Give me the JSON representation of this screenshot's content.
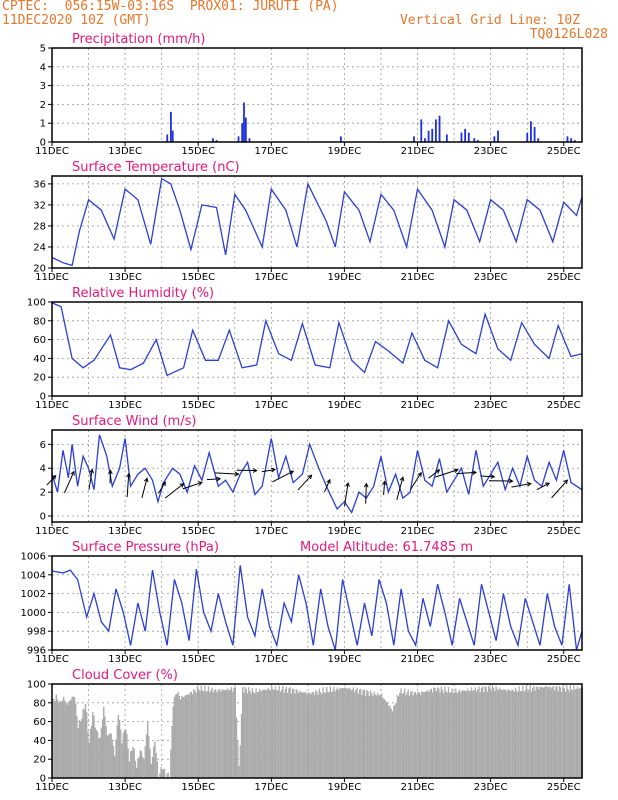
{
  "header": {
    "line1_left": "CPTEC:  056:15W-03:16S  PROX01: JURUTI (PA)",
    "line2_left": "11DEC2020 10Z (GMT)",
    "line2_right": "Vertical Grid Line: 10Z",
    "line3_right": "TQ0126L028"
  },
  "x_tick_labels": [
    "11DEC",
    "13DEC",
    "15DEC",
    "17DEC",
    "19DEC",
    "21DEC",
    "23DEC",
    "25DEC"
  ],
  "panel_title_extra": "Model Altitude: 61.7485 m",
  "colors": {
    "line": "#2a3fd6",
    "bars": "#1d2fe0",
    "cloud": "#aaaaaa",
    "title": "#e8177a",
    "header": "#e8762b"
  },
  "chart_data": [
    {
      "type": "bar",
      "title": "Precipitation (mm/h)",
      "ylim": [
        0,
        5
      ],
      "yticks": [
        "0",
        "1",
        "2",
        "3",
        "4",
        "5"
      ],
      "x_unit": "days since 11DEC 10Z",
      "x": [
        3.15,
        3.25,
        3.3,
        4.4,
        4.5,
        5.1,
        5.2,
        5.25,
        5.3,
        5.4,
        7.9,
        9.9,
        10.1,
        10.2,
        10.3,
        10.4,
        10.5,
        10.6,
        10.8,
        11.2,
        11.3,
        11.4,
        11.55,
        11.65,
        12.1,
        12.2,
        13.0,
        13.1,
        13.2,
        13.3,
        14.1,
        14.2,
        14.3
      ],
      "values": [
        0.4,
        1.6,
        0.6,
        0.2,
        0.1,
        0.3,
        1.0,
        2.1,
        1.3,
        0.2,
        0.3,
        0.3,
        1.2,
        0.2,
        0.6,
        0.7,
        1.2,
        1.4,
        0.4,
        0.5,
        0.7,
        0.5,
        0.2,
        0.1,
        0.3,
        0.6,
        0.5,
        1.1,
        0.8,
        0.2,
        0.3,
        0.2,
        0.1
      ]
    },
    {
      "type": "line",
      "title": "Surface Temperature (nC)",
      "ylim": [
        20,
        37.5
      ],
      "yticks": [
        "20",
        "24",
        "28",
        "32",
        "36"
      ],
      "x": [
        0,
        0.3,
        0.55,
        0.75,
        1.0,
        1.35,
        1.7,
        2.0,
        2.35,
        2.7,
        3.0,
        3.25,
        3.5,
        3.8,
        4.1,
        4.5,
        4.75,
        5.0,
        5.3,
        5.75,
        6.0,
        6.4,
        6.7,
        7.0,
        7.5,
        7.75,
        8.0,
        8.4,
        8.7,
        9.0,
        9.35,
        9.7,
        10.0,
        10.4,
        10.75,
        11.0,
        11.35,
        11.7,
        12.0,
        12.35,
        12.7,
        13.0,
        13.35,
        13.7,
        14.0,
        14.35,
        14.5
      ],
      "values": [
        22,
        21,
        20.5,
        27,
        33,
        31,
        25.5,
        35,
        33,
        24.5,
        37,
        36,
        31,
        23.5,
        32,
        31.5,
        22.5,
        34,
        31,
        24,
        35,
        31,
        24,
        36,
        29,
        24,
        34.5,
        31,
        25,
        34,
        31,
        24,
        35,
        31,
        24,
        33,
        31,
        25,
        33,
        31,
        25,
        33,
        31,
        25,
        32.5,
        30,
        33.5
      ]
    },
    {
      "type": "line",
      "title": "Relative Humidity (%)",
      "ylim": [
        0,
        100
      ],
      "yticks": [
        "0",
        "20",
        "40",
        "60",
        "80",
        "100"
      ],
      "x": [
        0,
        0.25,
        0.55,
        0.85,
        1.15,
        1.6,
        1.85,
        2.15,
        2.5,
        2.85,
        3.15,
        3.6,
        3.85,
        4.2,
        4.55,
        4.85,
        5.2,
        5.6,
        5.85,
        6.2,
        6.55,
        6.85,
        7.2,
        7.6,
        7.85,
        8.2,
        8.55,
        8.85,
        9.2,
        9.6,
        9.85,
        10.2,
        10.55,
        10.85,
        11.2,
        11.6,
        11.85,
        12.2,
        12.55,
        12.85,
        13.2,
        13.6,
        13.85,
        14.2,
        14.5
      ],
      "values": [
        99,
        95,
        40,
        30,
        38,
        65,
        30,
        28,
        35,
        60,
        22,
        30,
        70,
        38,
        38,
        70,
        30,
        33,
        80,
        45,
        38,
        77,
        33,
        30,
        78,
        38,
        25,
        58,
        48,
        35,
        67,
        38,
        30,
        80,
        55,
        45,
        87,
        50,
        38,
        78,
        55,
        40,
        75,
        42,
        45
      ]
    },
    {
      "type": "line",
      "title": "Surface Wind (m/s)",
      "ylim": [
        -0.5,
        7.2
      ],
      "yticks": [
        "0",
        "2",
        "4",
        "6"
      ],
      "x": [
        0,
        0.15,
        0.3,
        0.45,
        0.55,
        0.7,
        0.85,
        1.0,
        1.15,
        1.3,
        1.5,
        1.65,
        1.85,
        2.0,
        2.15,
        2.35,
        2.55,
        2.75,
        2.9,
        3.05,
        3.3,
        3.5,
        3.7,
        3.9,
        4.1,
        4.3,
        4.55,
        4.75,
        4.95,
        5.15,
        5.35,
        5.55,
        5.75,
        6.0,
        6.2,
        6.4,
        6.6,
        6.85,
        7.05,
        7.3,
        7.55,
        7.8,
        8.0,
        8.2,
        8.4,
        8.6,
        8.8,
        9.0,
        9.2,
        9.4,
        9.6,
        9.8,
        10.0,
        10.2,
        10.4,
        10.6,
        10.8,
        11.0,
        11.2,
        11.4,
        11.6,
        11.8,
        12.0,
        12.2,
        12.4,
        12.6,
        12.8,
        13.0,
        13.2,
        13.4,
        13.6,
        13.8,
        14.0,
        14.2,
        14.5
      ],
      "values": [
        3.5,
        2.0,
        5.5,
        3.2,
        6.0,
        2.5,
        5.0,
        4.0,
        2.2,
        6.8,
        5.0,
        2.5,
        4.0,
        6.5,
        2.5,
        3.5,
        4.0,
        3.0,
        1.2,
        2.8,
        4.0,
        3.5,
        2.0,
        4.2,
        3.0,
        5.3,
        2.5,
        3.0,
        2.0,
        3.5,
        4.5,
        1.8,
        2.5,
        6.5,
        3.2,
        5.0,
        2.8,
        3.5,
        6.0,
        4.0,
        2.2,
        0.6,
        1.2,
        0.3,
        2.0,
        1.5,
        2.5,
        5.0,
        2.0,
        3.5,
        1.5,
        2.0,
        5.5,
        3.0,
        2.5,
        4.8,
        2.0,
        3.0,
        4.0,
        1.8,
        5.5,
        2.5,
        3.5,
        4.5,
        2.2,
        4.0,
        2.5,
        5.0,
        3.0,
        2.5,
        4.5,
        3.0,
        5.5,
        2.8,
        2.2
      ]
    },
    {
      "type": "line",
      "title": "Surface Pressure (hPa)",
      "ylim": [
        996,
        1006
      ],
      "yticks": [
        "996",
        "998",
        "1000",
        "1002",
        "1004",
        "1006"
      ],
      "x": [
        0,
        0.3,
        0.5,
        0.7,
        0.95,
        1.15,
        1.35,
        1.55,
        1.75,
        1.95,
        2.15,
        2.35,
        2.55,
        2.75,
        2.95,
        3.15,
        3.35,
        3.55,
        3.75,
        3.95,
        4.15,
        4.35,
        4.55,
        4.75,
        4.95,
        5.15,
        5.35,
        5.55,
        5.75,
        5.95,
        6.15,
        6.35,
        6.55,
        6.75,
        6.95,
        7.15,
        7.35,
        7.55,
        7.75,
        7.95,
        8.15,
        8.35,
        8.55,
        8.75,
        8.95,
        9.15,
        9.35,
        9.55,
        9.75,
        9.95,
        10.15,
        10.35,
        10.55,
        10.75,
        10.95,
        11.15,
        11.35,
        11.55,
        11.75,
        11.95,
        12.15,
        12.35,
        12.55,
        12.75,
        12.95,
        13.15,
        13.35,
        13.55,
        13.75,
        13.95,
        14.15,
        14.35,
        14.5
      ],
      "values": [
        1004.4,
        1004.2,
        1004.5,
        1003.5,
        999.5,
        1002.0,
        999.0,
        998.0,
        1002.5,
        1000.0,
        996.5,
        1001.0,
        998.0,
        1004.5,
        1000.0,
        996.5,
        1003.5,
        1001.0,
        997.0,
        1004.6,
        1000.0,
        998.0,
        1002.0,
        999.0,
        996.5,
        1005.0,
        999.5,
        997.5,
        1002.5,
        998.5,
        996.5,
        1001.0,
        999.0,
        1004.0,
        1001.0,
        996.5,
        1002.5,
        998.5,
        996.0,
        1003.5,
        1000.0,
        996.5,
        1001.0,
        997.5,
        1003.5,
        1001.0,
        996.5,
        1002.5,
        998.0,
        996.5,
        1001.5,
        998.5,
        1003.0,
        1000.0,
        996.5,
        1001.5,
        999.0,
        996.5,
        1003.0,
        1000.0,
        997.0,
        1002.0,
        998.5,
        996.5,
        1001.5,
        999.0,
        996.5,
        1002.0,
        998.5,
        996.5,
        1003.0,
        996.0,
        998.0
      ]
    },
    {
      "type": "area",
      "title": "Cloud Cover (%)",
      "ylim": [
        0,
        100
      ],
      "yticks": [
        "0",
        "20",
        "40",
        "60",
        "80",
        "100"
      ],
      "x": [
        0,
        0.1,
        0.2,
        0.3,
        0.4,
        0.5,
        0.6,
        0.7,
        0.8,
        0.9,
        1.0,
        1.1,
        1.2,
        1.3,
        1.4,
        1.5,
        1.6,
        1.7,
        1.8,
        1.9,
        2.0,
        2.1,
        2.2,
        2.3,
        2.4,
        2.5,
        2.6,
        2.7,
        2.8,
        2.9,
        3.0,
        3.1,
        3.2,
        3.3,
        3.4,
        3.5,
        4.0,
        4.5,
        5.0,
        5.1,
        5.2,
        5.5,
        6.0,
        6.5,
        7.0,
        7.5,
        8.0,
        8.5,
        9.0,
        9.3,
        9.5,
        10.0,
        10.5,
        11.0,
        11.5,
        12.0,
        12.5,
        13.0,
        13.5,
        14.0,
        14.5
      ],
      "values": [
        82,
        86,
        80,
        85,
        78,
        84,
        88,
        55,
        65,
        80,
        38,
        70,
        50,
        42,
        75,
        45,
        48,
        25,
        70,
        40,
        55,
        20,
        35,
        12,
        30,
        20,
        60,
        15,
        40,
        2,
        12,
        4,
        3,
        80,
        92,
        85,
        95,
        93,
        95,
        10,
        95,
        92,
        95,
        94,
        90,
        93,
        96,
        92,
        88,
        72,
        92,
        90,
        95,
        92,
        94,
        96,
        93,
        95,
        97,
        95,
        96
      ]
    }
  ]
}
